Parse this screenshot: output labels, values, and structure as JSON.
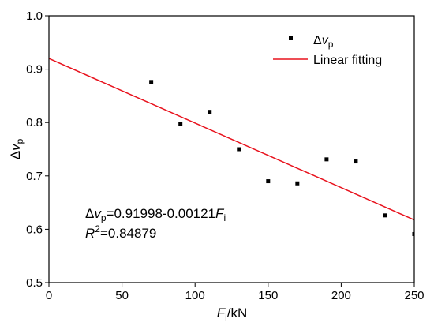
{
  "chart_data": {
    "type": "scatter",
    "xlabel": {
      "main": "F",
      "sub": "i",
      "unit": "/kN"
    },
    "ylabel": {
      "prefix": "Δ",
      "main": "v",
      "sub": "p"
    },
    "xlim": [
      0,
      250
    ],
    "ylim": [
      0.5,
      1.0
    ],
    "xticks": [
      0,
      50,
      100,
      150,
      200,
      250
    ],
    "yticks": [
      0.5,
      0.6,
      0.7,
      0.8,
      0.9,
      1.0
    ],
    "xtick_labels": [
      "0",
      "50",
      "100",
      "150",
      "200",
      "250"
    ],
    "ytick_labels": [
      "0.5",
      "0.6",
      "0.7",
      "0.8",
      "0.9",
      "1.0"
    ],
    "series": [
      {
        "name": {
          "prefix": "Δ",
          "main": "v",
          "sub": "p"
        },
        "kind": "scatter",
        "color": "#000000",
        "x": [
          70,
          90,
          110,
          130,
          150,
          170,
          190,
          210,
          230,
          250
        ],
        "y": [
          0.876,
          0.797,
          0.82,
          0.75,
          0.69,
          0.686,
          0.731,
          0.727,
          0.626,
          0.591
        ]
      },
      {
        "name": "Linear fitting",
        "kind": "line",
        "color": "#e8121d",
        "intercept": 0.91998,
        "slope": -0.00121
      }
    ],
    "legend_position": "top-right",
    "annotations": {
      "equation": {
        "prefix": "Δ",
        "v": "v",
        "v_sub": "p",
        "rhs": "=0.91998-0.00121",
        "f": "F",
        "f_sub": "i"
      },
      "r_squared": {
        "r": "R",
        "sup": "2",
        "rest": "=0.84879"
      }
    }
  }
}
